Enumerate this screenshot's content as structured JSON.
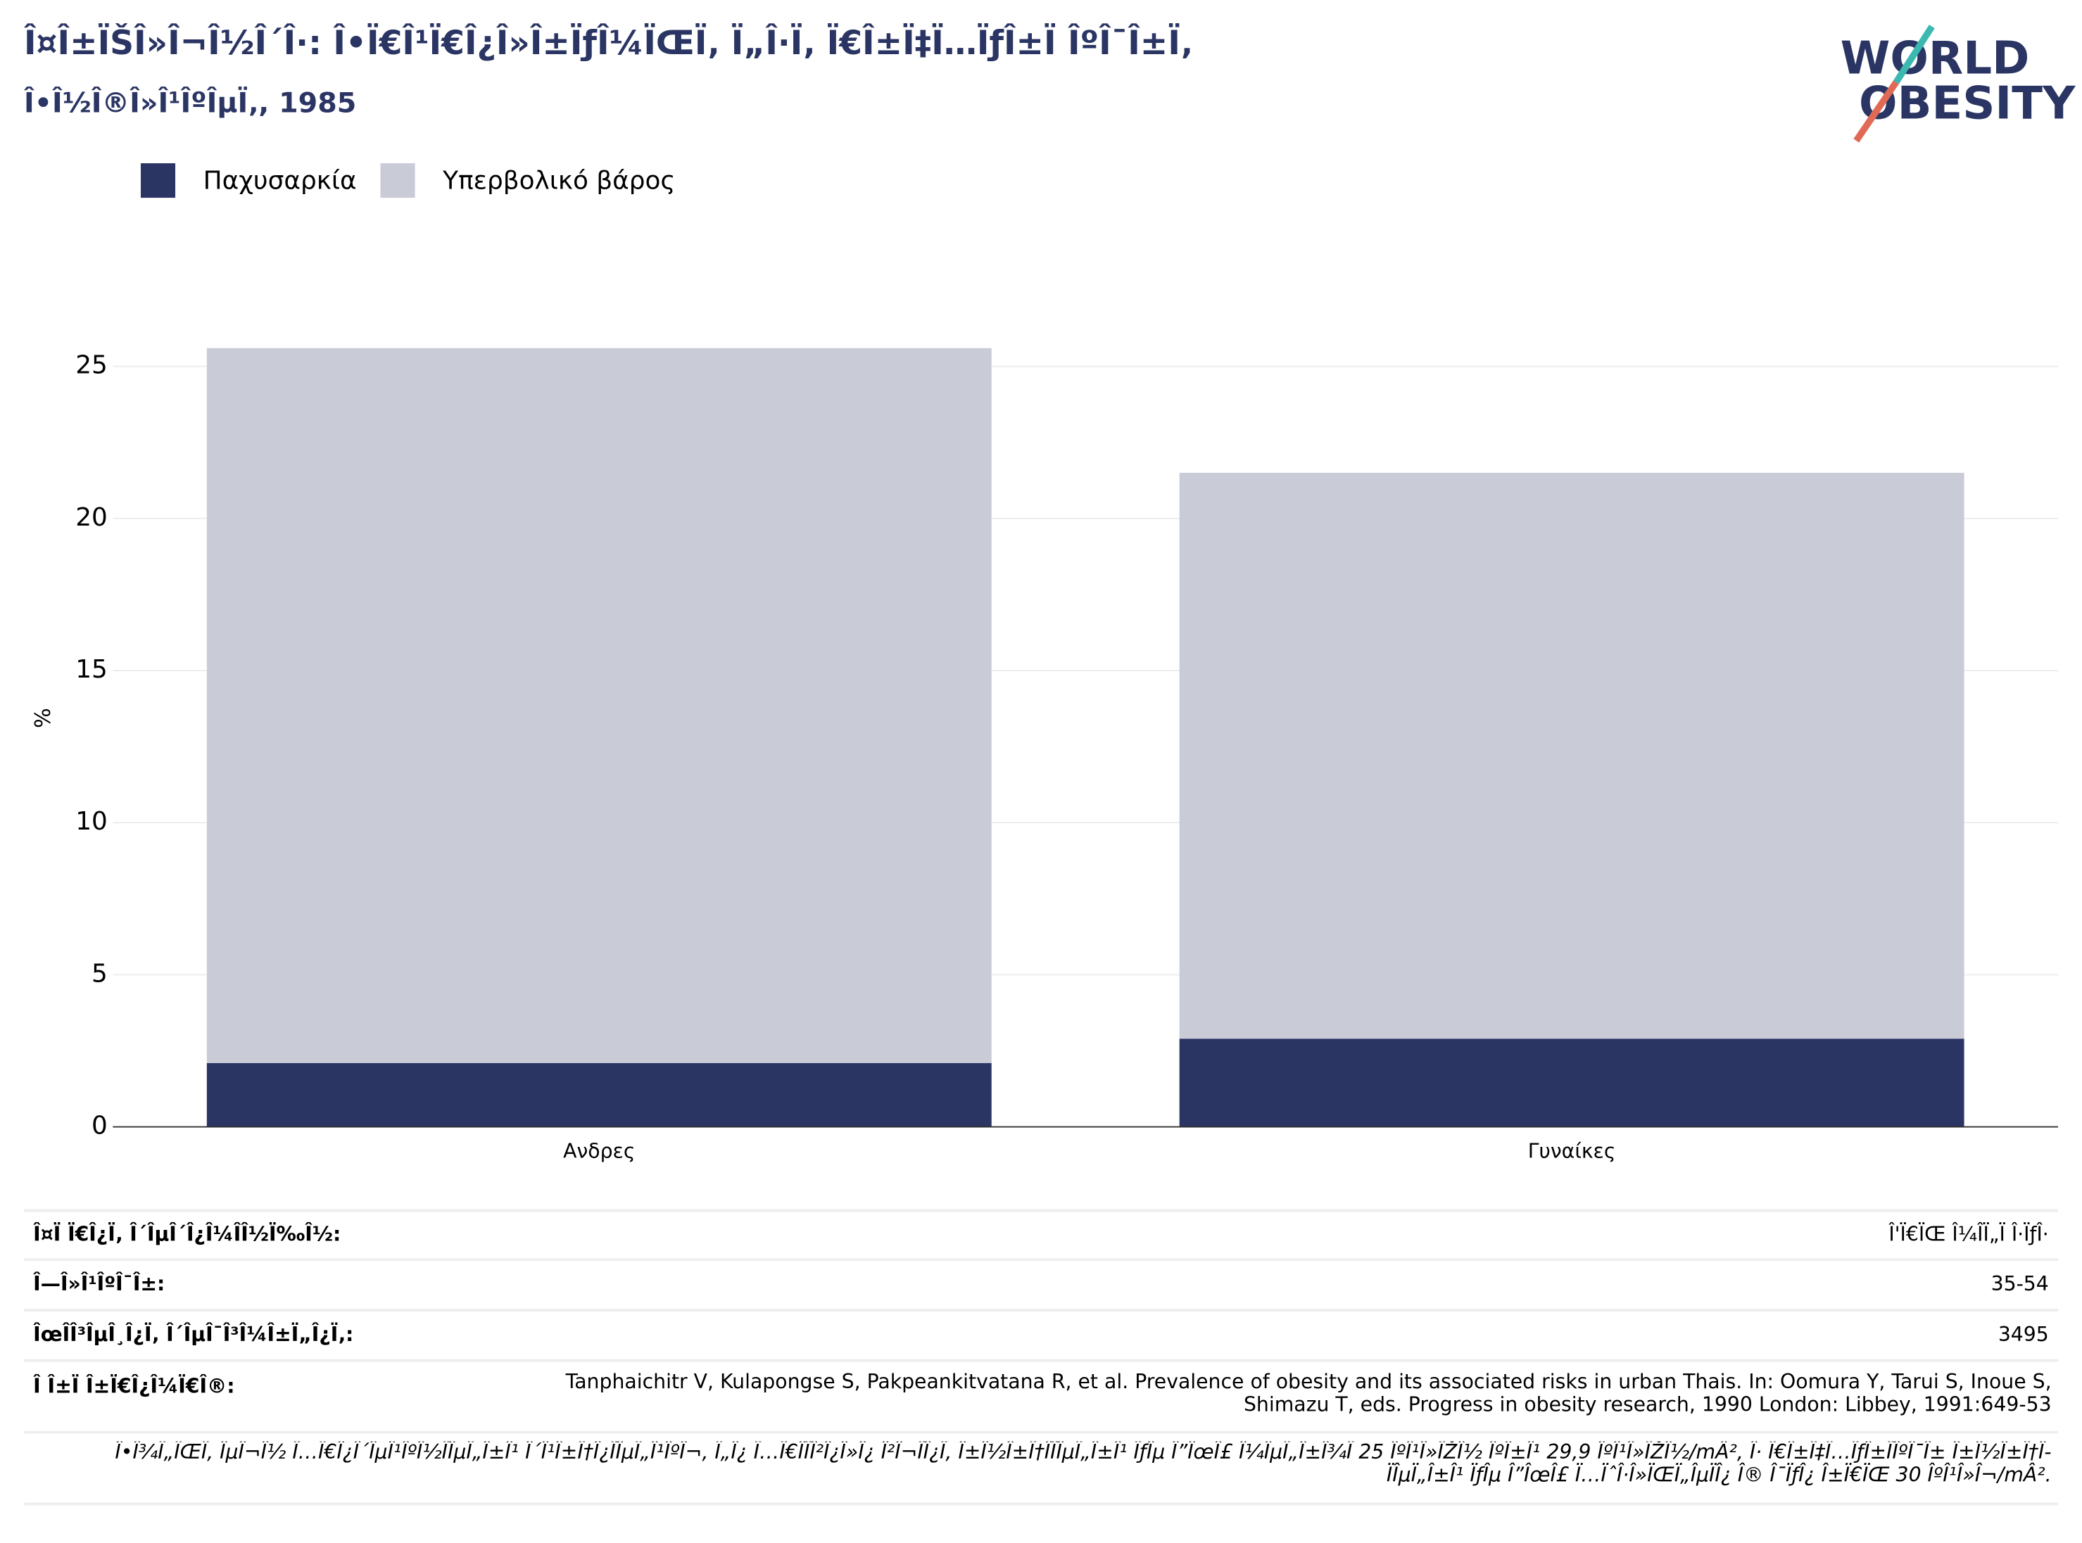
{
  "chart_data": {
    "type": "bar",
    "stacked": true,
    "title": "Î¤Î±ÏŠÎ»Î¬Î½Î´Î·: Î•Ï€Î¹Ï€Î¿Î»Î±ÏƒÎ¼ÏŒÏ‚ Ï„Î·Ï‚ Ï€Î±Ï‡Ï…ÏƒÎ±Ï ÎºÎ¯Î±Ï‚",
    "subtitle": "Î•Î½Î®Î»Î¹ÎºÎµÏ‚, 1985",
    "logo": [
      "WORLD",
      "OBESITY"
    ],
    "ylabel": "%",
    "categories": [
      "Ανδρες",
      "Γυναίκες"
    ],
    "series": [
      {
        "name": "Παχυσαρκία",
        "color": "#2b3564",
        "values": [
          2.1,
          2.9
        ]
      },
      {
        "name": "Υπερβολικό βάρος",
        "color": "#c9cbd7",
        "values": [
          23.5,
          18.6
        ]
      }
    ],
    "ylim": [
      0,
      25
    ],
    "yticks": [
      0,
      5,
      10,
      15,
      20,
      25
    ],
    "grid": true,
    "legend": "top-left"
  },
  "table": {
    "rows": [
      [
        "Î¤Ï Ï€Î¿Ï‚ Î´ÎµÎ´Î¿Î¼Î­Î½Ï‰Î½:",
        "Î'Ï€ÏŒ Î¼ÎÏ„Ï Î·ÏƒÎ·"
      ],
      [
        "Î—Î»Î¹ÎºÎ¯Î±:",
        "35-54"
      ],
      [
        "ÎœÎ­Î³ÎµÎ¸Î¿Ï‚ Î´ÎµÎ¯Î³Î¼Î±Ï„Î¿Ï‚:",
        "3495"
      ],
      [
        "Î Î±Ï Î±Ï€Î¿Î¼Ï€Î®:",
        "Tanphaichitr V, Kulapongse S, Pakpeankitvatana R, et al. Prevalence of obesity and its associated risks in urban Thais. In: Oomura Y, Tarui S, Inoue S, Shimazu T, eds. Progress in obesity research, 1990 London: Libbey, 1991:649-53"
      ]
    ],
    "note": "Î•Î¾Ï„ÏŒÏ‚ ÎµÎ¬Î½ Ï…Ï€Î¿Î´ÎµÎ¹ÎºÎ½ÏÎµÏ„Î±Î¹ Î´Î¹Î±Ï†Î¿ÏÎµÏ„Î¹ÎºÎ¬, Ï„Î¿ Ï…Ï€Î­ÏÎ²Î¿Î»Î¿ Î²Î¬ÏÎ¿Ï‚ Î±Î½Î±Ï†Î­ÏÎµÏ„Î±Î¹ ÏƒÎµ Î”ÎœÎ£ Î¼ÎµÏ„Î±Î¾Ï 25 ÎºÎ¹Î»ÏŽÎ½ ÎºÎ±Î¹ 29,9 ÎºÎ¹Î»ÏŽÎ½/mÂ², Î· Ï€Î±Ï‡Ï…ÏƒÎ±ÏÎºÎ¯Î± Î±Î½Î±Ï†Î­ÏÎµÏ„Î±Î¹ ÏƒÎµ Î”ÎœÎ£ Ï…ÏˆÎ·Î»ÏŒÏ„ÎµÏÎ¿ Î® Î¯ÏƒÎ¿ Î±Ï€ÏŒ 30 ÎºÎ¹Î»Î¬/mÂ²."
  }
}
